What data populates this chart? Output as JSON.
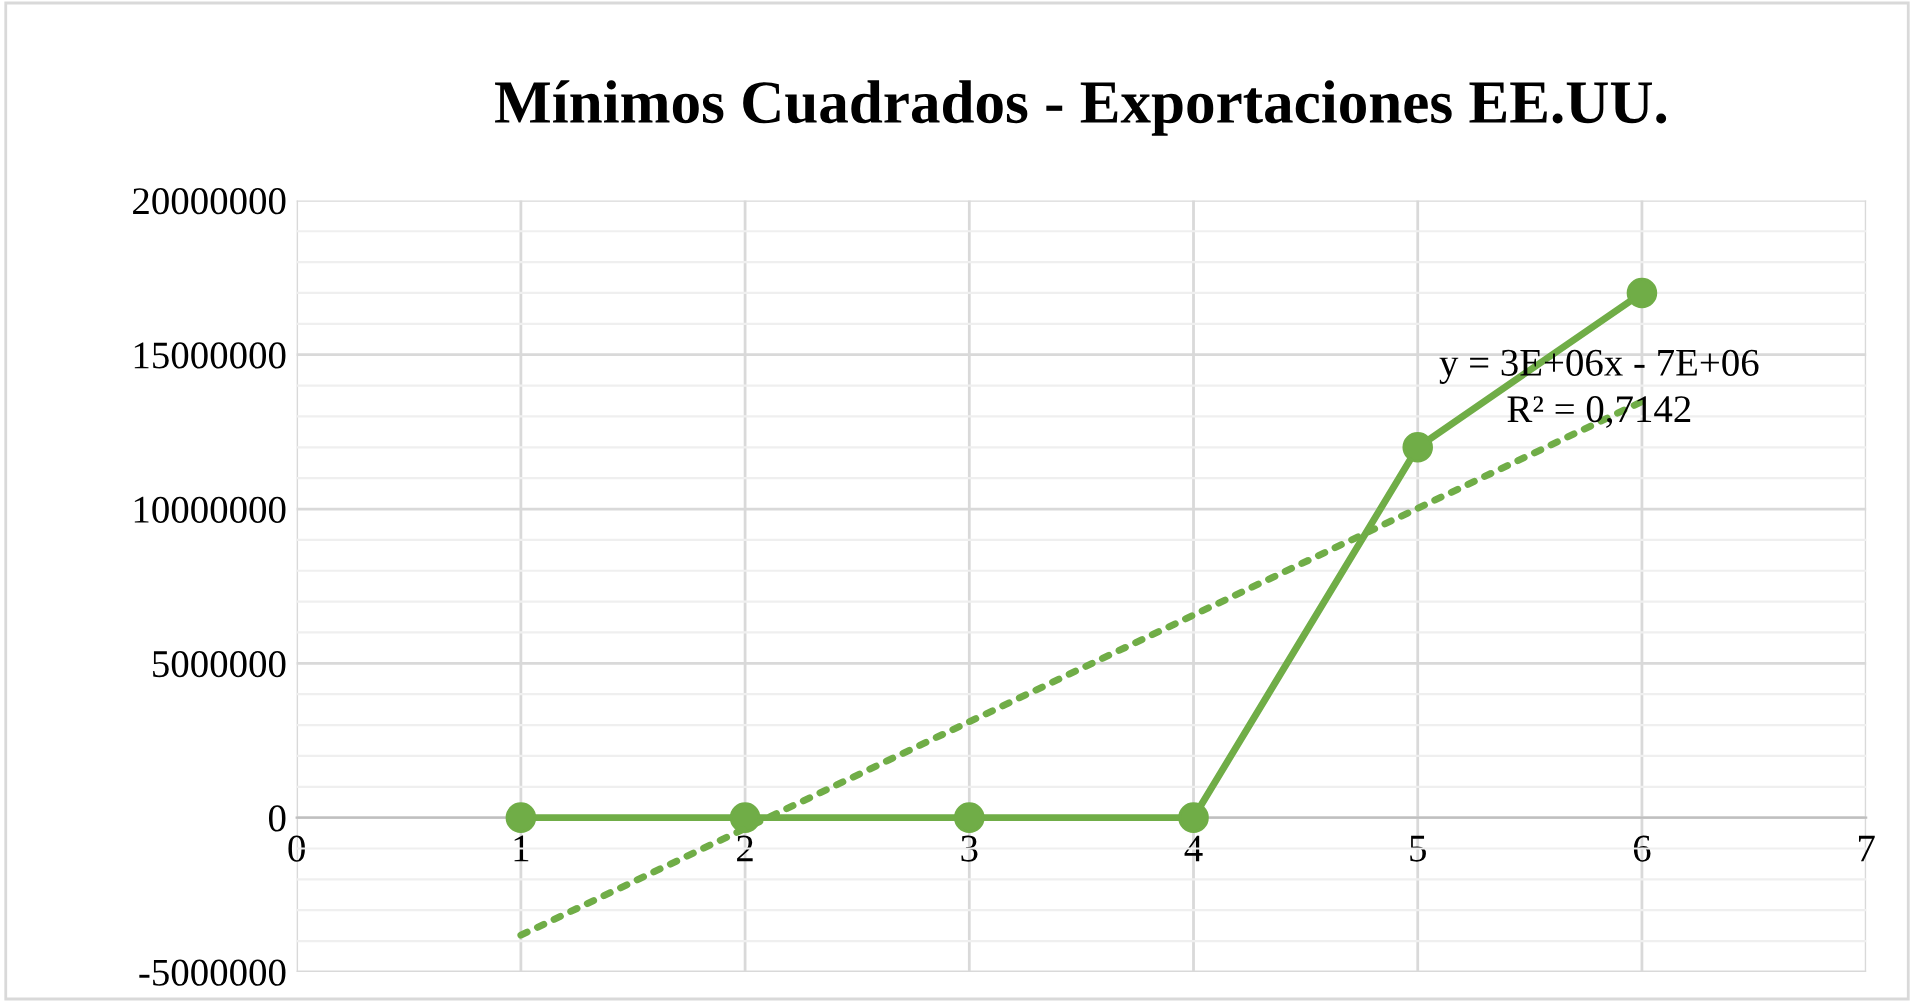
{
  "chart_data": {
    "type": "line",
    "title": "Mínimos Cuadrados - Exportaciones EE.UU.",
    "x": [
      1,
      2,
      3,
      4,
      5,
      6
    ],
    "series": [
      {
        "color": "#70ad47",
        "values": [
          0,
          0,
          0,
          0,
          12000000,
          17000000
        ],
        "marker": "circle",
        "line_style": "solid"
      },
      {
        "type": "line",
        "color": "#70ad47",
        "x": [
          1,
          6
        ],
        "values": [
          -3810000,
          13480000
        ],
        "marker": "none",
        "line_style": "dotted"
      }
    ],
    "annotations": [
      "y = 3E+06x - 7E+06",
      "R² = 0,7142"
    ],
    "xlim": [
      0,
      7
    ],
    "xticks": [
      0,
      1,
      2,
      3,
      4,
      5,
      6,
      7
    ],
    "ylim": [
      -5000000,
      20000000
    ],
    "yticks": [
      -5000000,
      0,
      5000000,
      10000000,
      15000000,
      20000000
    ],
    "grid": true,
    "legend": false
  }
}
